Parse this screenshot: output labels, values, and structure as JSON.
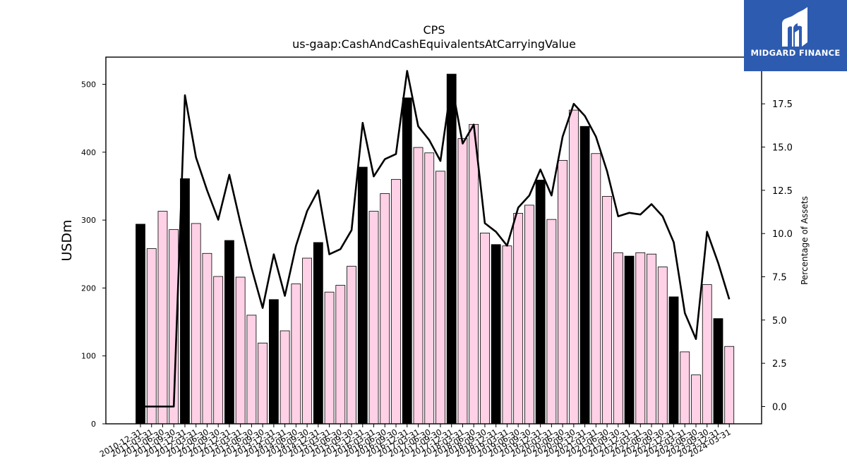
{
  "chart_data": {
    "type": "bar",
    "title": "CPS",
    "subtitle": "us-gaap:CashAndCashEquivalentsAtCarryingValue",
    "ylabel": "USDm",
    "y2label": "Percentage of Assets",
    "ylim": [
      0,
      540
    ],
    "y2lim": [
      -1.0,
      20.2
    ],
    "yticks": [
      0,
      100,
      200,
      300,
      400,
      500
    ],
    "y2ticks": [
      "0.0",
      "2.5",
      "5.0",
      "7.5",
      "10.0",
      "12.5",
      "15.0",
      "17.5"
    ],
    "categories": [
      "2010-12-31",
      "2011-03-31",
      "2011-06-30",
      "2011-09-30",
      "2011-12-31",
      "2012-03-31",
      "2012-06-30",
      "2012-09-30",
      "2012-12-31",
      "2013-03-31",
      "2013-06-30",
      "2013-09-30",
      "2013-12-31",
      "2014-03-31",
      "2014-06-30",
      "2014-09-30",
      "2014-12-31",
      "2015-03-31",
      "2015-06-30",
      "2015-09-30",
      "2015-12-31",
      "2016-03-31",
      "2016-06-30",
      "2016-09-30",
      "2016-12-31",
      "2017-03-31",
      "2017-06-30",
      "2017-09-30",
      "2017-12-31",
      "2018-03-31",
      "2018-06-30",
      "2018-09-30",
      "2018-12-31",
      "2019-03-31",
      "2019-06-30",
      "2019-09-30",
      "2019-12-31",
      "2020-03-31",
      "2020-06-30",
      "2020-09-30",
      "2020-12-31",
      "2021-03-31",
      "2021-06-30",
      "2021-09-30",
      "2021-12-31",
      "2022-03-31",
      "2022-06-30",
      "2022-09-30",
      "2022-12-31",
      "2023-03-31",
      "2023-06-30",
      "2023-09-30",
      "2023-12-31",
      "2024-03-31"
    ],
    "series": [
      {
        "kind": "bar",
        "axis": "left",
        "values": [
          294,
          258,
          313,
          286,
          361,
          295,
          251,
          217,
          270,
          216,
          160,
          119,
          183,
          137,
          206,
          244,
          267,
          194,
          204,
          232,
          378,
          313,
          339,
          360,
          480,
          407,
          399,
          372,
          515,
          420,
          441,
          281,
          264,
          262,
          310,
          322,
          359,
          301,
          388,
          462,
          438,
          398,
          335,
          252,
          247,
          252,
          250,
          231,
          187,
          106,
          72,
          205,
          155,
          114
        ],
        "year_end_color": "#000000",
        "quarter_color": "#ffd1e6"
      },
      {
        "kind": "line",
        "axis": "right",
        "color": "#000000",
        "values": [
          0.0,
          0.0,
          0.0,
          0.0,
          18.0,
          14.4,
          12.5,
          10.8,
          13.4,
          10.6,
          8.0,
          5.7,
          8.8,
          6.4,
          9.3,
          11.3,
          12.5,
          8.8,
          9.1,
          10.2,
          16.4,
          13.3,
          14.3,
          14.6,
          19.4,
          16.2,
          15.4,
          14.2,
          18.7,
          15.2,
          16.3,
          10.6,
          10.1,
          9.3,
          11.5,
          12.2,
          13.7,
          12.2,
          15.6,
          17.5,
          16.8,
          15.6,
          13.6,
          11.0,
          11.2,
          11.1,
          11.7,
          11.0,
          9.5,
          5.4,
          3.9,
          10.1,
          8.3,
          6.2
        ]
      }
    ],
    "year_end_categories": [
      "2010-12-31",
      "2011-12-31",
      "2012-12-31",
      "2013-12-31",
      "2014-12-31",
      "2015-12-31",
      "2016-12-31",
      "2017-12-31",
      "2018-12-31",
      "2019-12-31",
      "2020-12-31",
      "2021-12-31",
      "2022-12-31",
      "2023-12-31"
    ]
  },
  "logo": {
    "text": "MIDGARD FINANCE",
    "background": "#2d5bb0"
  }
}
